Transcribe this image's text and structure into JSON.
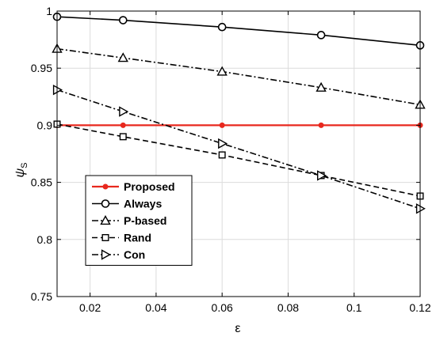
{
  "chart_data": {
    "type": "line",
    "title": "",
    "xlabel": "ε",
    "ylabel": "ψ",
    "ylabel_sub": "S",
    "xlim": [
      0.01,
      0.12
    ],
    "ylim": [
      0.75,
      1.0
    ],
    "x_ticks": [
      0.02,
      0.04,
      0.06,
      0.08,
      0.1,
      0.12
    ],
    "x_tick_labels": [
      "0.02",
      "0.04",
      "0.06",
      "0.08",
      "0.1",
      "0.12"
    ],
    "y_ticks": [
      0.75,
      0.8,
      0.85,
      0.9,
      0.95,
      1.0
    ],
    "y_tick_labels": [
      "0.75",
      "0.8",
      "0.85",
      "0.9",
      "0.95",
      "1"
    ],
    "grid": true,
    "legend_position": "lower-left",
    "x": [
      0.01,
      0.03,
      0.06,
      0.09,
      0.12
    ],
    "series": [
      {
        "name": "Proposed",
        "values": [
          0.9,
          0.9,
          0.9,
          0.9,
          0.9
        ],
        "color": "#e8281e",
        "dash": "solid",
        "marker": "star"
      },
      {
        "name": "Always",
        "values": [
          0.995,
          0.992,
          0.986,
          0.979,
          0.97
        ],
        "color": "#000000",
        "dash": "solid",
        "marker": "circle"
      },
      {
        "name": "P-based",
        "values": [
          0.967,
          0.959,
          0.947,
          0.933,
          0.918
        ],
        "color": "#000000",
        "dash": "dashdot",
        "marker": "triangle-up"
      },
      {
        "name": "Rand",
        "values": [
          0.901,
          0.89,
          0.874,
          0.856,
          0.838
        ],
        "color": "#000000",
        "dash": "dashed",
        "marker": "square"
      },
      {
        "name": "Con",
        "values": [
          0.931,
          0.912,
          0.884,
          0.856,
          0.827
        ],
        "color": "#000000",
        "dash": "dashdot",
        "marker": "triangle-right"
      }
    ]
  }
}
